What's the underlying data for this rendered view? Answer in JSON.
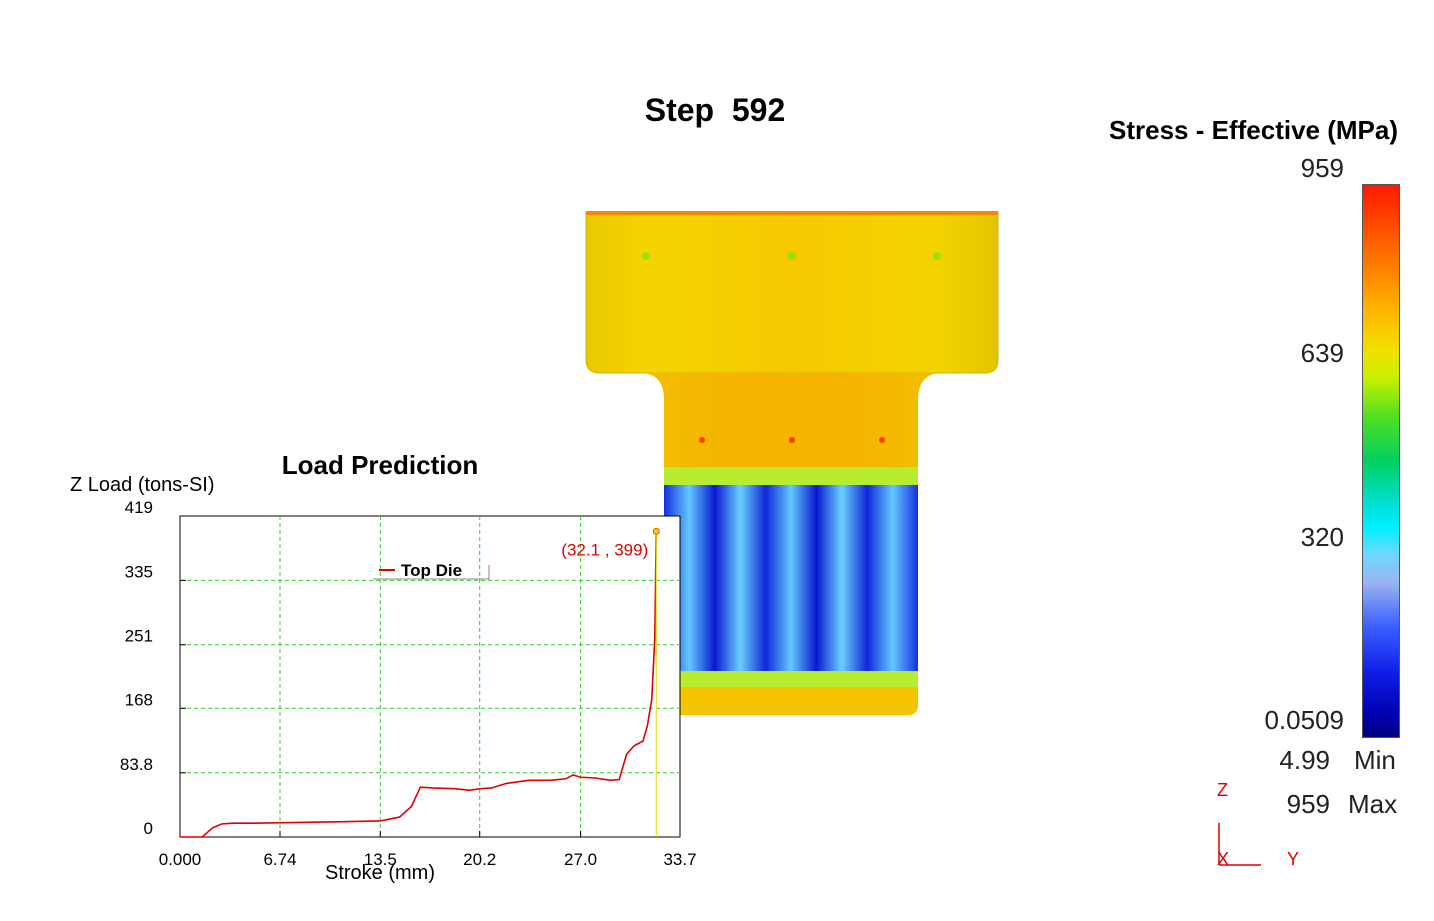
{
  "step": {
    "label": "Step",
    "number": "592"
  },
  "legend": {
    "title": "Stress - Effective (MPa)",
    "ticks": [
      "959",
      "639",
      "320",
      "0.0509"
    ],
    "min_value": "4.99",
    "min_label": "Min",
    "max_value": "959",
    "max_label": "Max",
    "axes": {
      "z": "Z",
      "x": "X",
      "y": "Y"
    }
  },
  "load_chart": {
    "title": "Load Prediction",
    "xlabel": "Stroke (mm)",
    "ylabel": "Z Load (tons-SI)",
    "x_ticks": [
      "0.000",
      "6.74",
      "13.5",
      "20.2",
      "27.0",
      "33.7"
    ],
    "y_ticks": [
      "0",
      "83.8",
      "168",
      "251",
      "335",
      "419"
    ],
    "legend_entry": "Top Die",
    "current_point_label": "(32.1 , 399)"
  },
  "chart_data": {
    "type": "line",
    "title": "Load Prediction",
    "xlabel": "Stroke (mm)",
    "ylabel": "Z Load (tons-SI)",
    "xlim": [
      0,
      33.7
    ],
    "ylim": [
      0,
      419
    ],
    "grid": true,
    "legend_position": "top-center",
    "series": [
      {
        "name": "Top Die",
        "color": "#e00000",
        "x": [
          0,
          1.5,
          2.2,
          2.8,
          3.5,
          5,
          8,
          11,
          13.5,
          14.8,
          15.6,
          16.2,
          17,
          18.5,
          19.5,
          20.2,
          21,
          22,
          23.5,
          25,
          26,
          26.5,
          27,
          28,
          29,
          29.6,
          30.1,
          30.6,
          31.2,
          31.5,
          31.8,
          32.0,
          32.1
        ],
        "y": [
          0,
          0,
          12,
          17,
          18,
          18,
          19,
          20,
          21,
          26,
          40,
          65,
          64,
          63,
          61,
          63,
          64,
          70,
          74,
          74,
          76,
          81,
          78,
          77,
          74,
          75,
          108,
          119,
          125,
          145,
          180,
          260,
          399
        ]
      }
    ],
    "current_point": {
      "x": 32.1,
      "y": 399
    }
  },
  "colors": {
    "accent_red": "#e00000",
    "grid": "#33cc33",
    "part_base": "#f5c400"
  }
}
